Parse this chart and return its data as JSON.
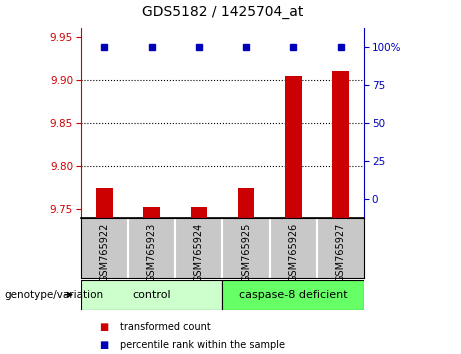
{
  "title": "GDS5182 / 1425704_at",
  "samples": [
    "GSM765922",
    "GSM765923",
    "GSM765924",
    "GSM765925",
    "GSM765926",
    "GSM765927"
  ],
  "transformed_counts": [
    9.775,
    9.752,
    9.752,
    9.775,
    9.905,
    9.91
  ],
  "percentile_ranks": [
    98,
    98,
    98,
    98,
    98,
    98
  ],
  "ylim_left": [
    9.74,
    9.96
  ],
  "ylim_right": [
    -12.5,
    112.5
  ],
  "yticks_left": [
    9.75,
    9.8,
    9.85,
    9.9,
    9.95
  ],
  "yticks_right": [
    0,
    25,
    50,
    75,
    100
  ],
  "ytick_labels_right": [
    "0",
    "25",
    "50",
    "75",
    "100%"
  ],
  "bar_color": "#cc0000",
  "dot_color": "#0000bb",
  "bar_baseline": 9.74,
  "percentile_yval": 9.938,
  "gridlines": [
    9.8,
    9.85,
    9.9
  ],
  "groups": [
    {
      "label": "control",
      "samples": [
        0,
        1,
        2
      ],
      "color": "#ccffcc"
    },
    {
      "label": "caspase-8 deficient",
      "samples": [
        3,
        4,
        5
      ],
      "color": "#66ff66"
    }
  ],
  "group_label_text": "genotype/variation",
  "legend_items": [
    {
      "color": "#cc0000",
      "label": "transformed count"
    },
    {
      "color": "#0000bb",
      "label": "percentile rank within the sample"
    }
  ],
  "background_color": "#ffffff",
  "left_tick_label_color": "#cc0000",
  "right_tick_label_color": "#0000bb",
  "sample_area_color": "#c8c8c8",
  "sample_divider_color": "#ffffff"
}
